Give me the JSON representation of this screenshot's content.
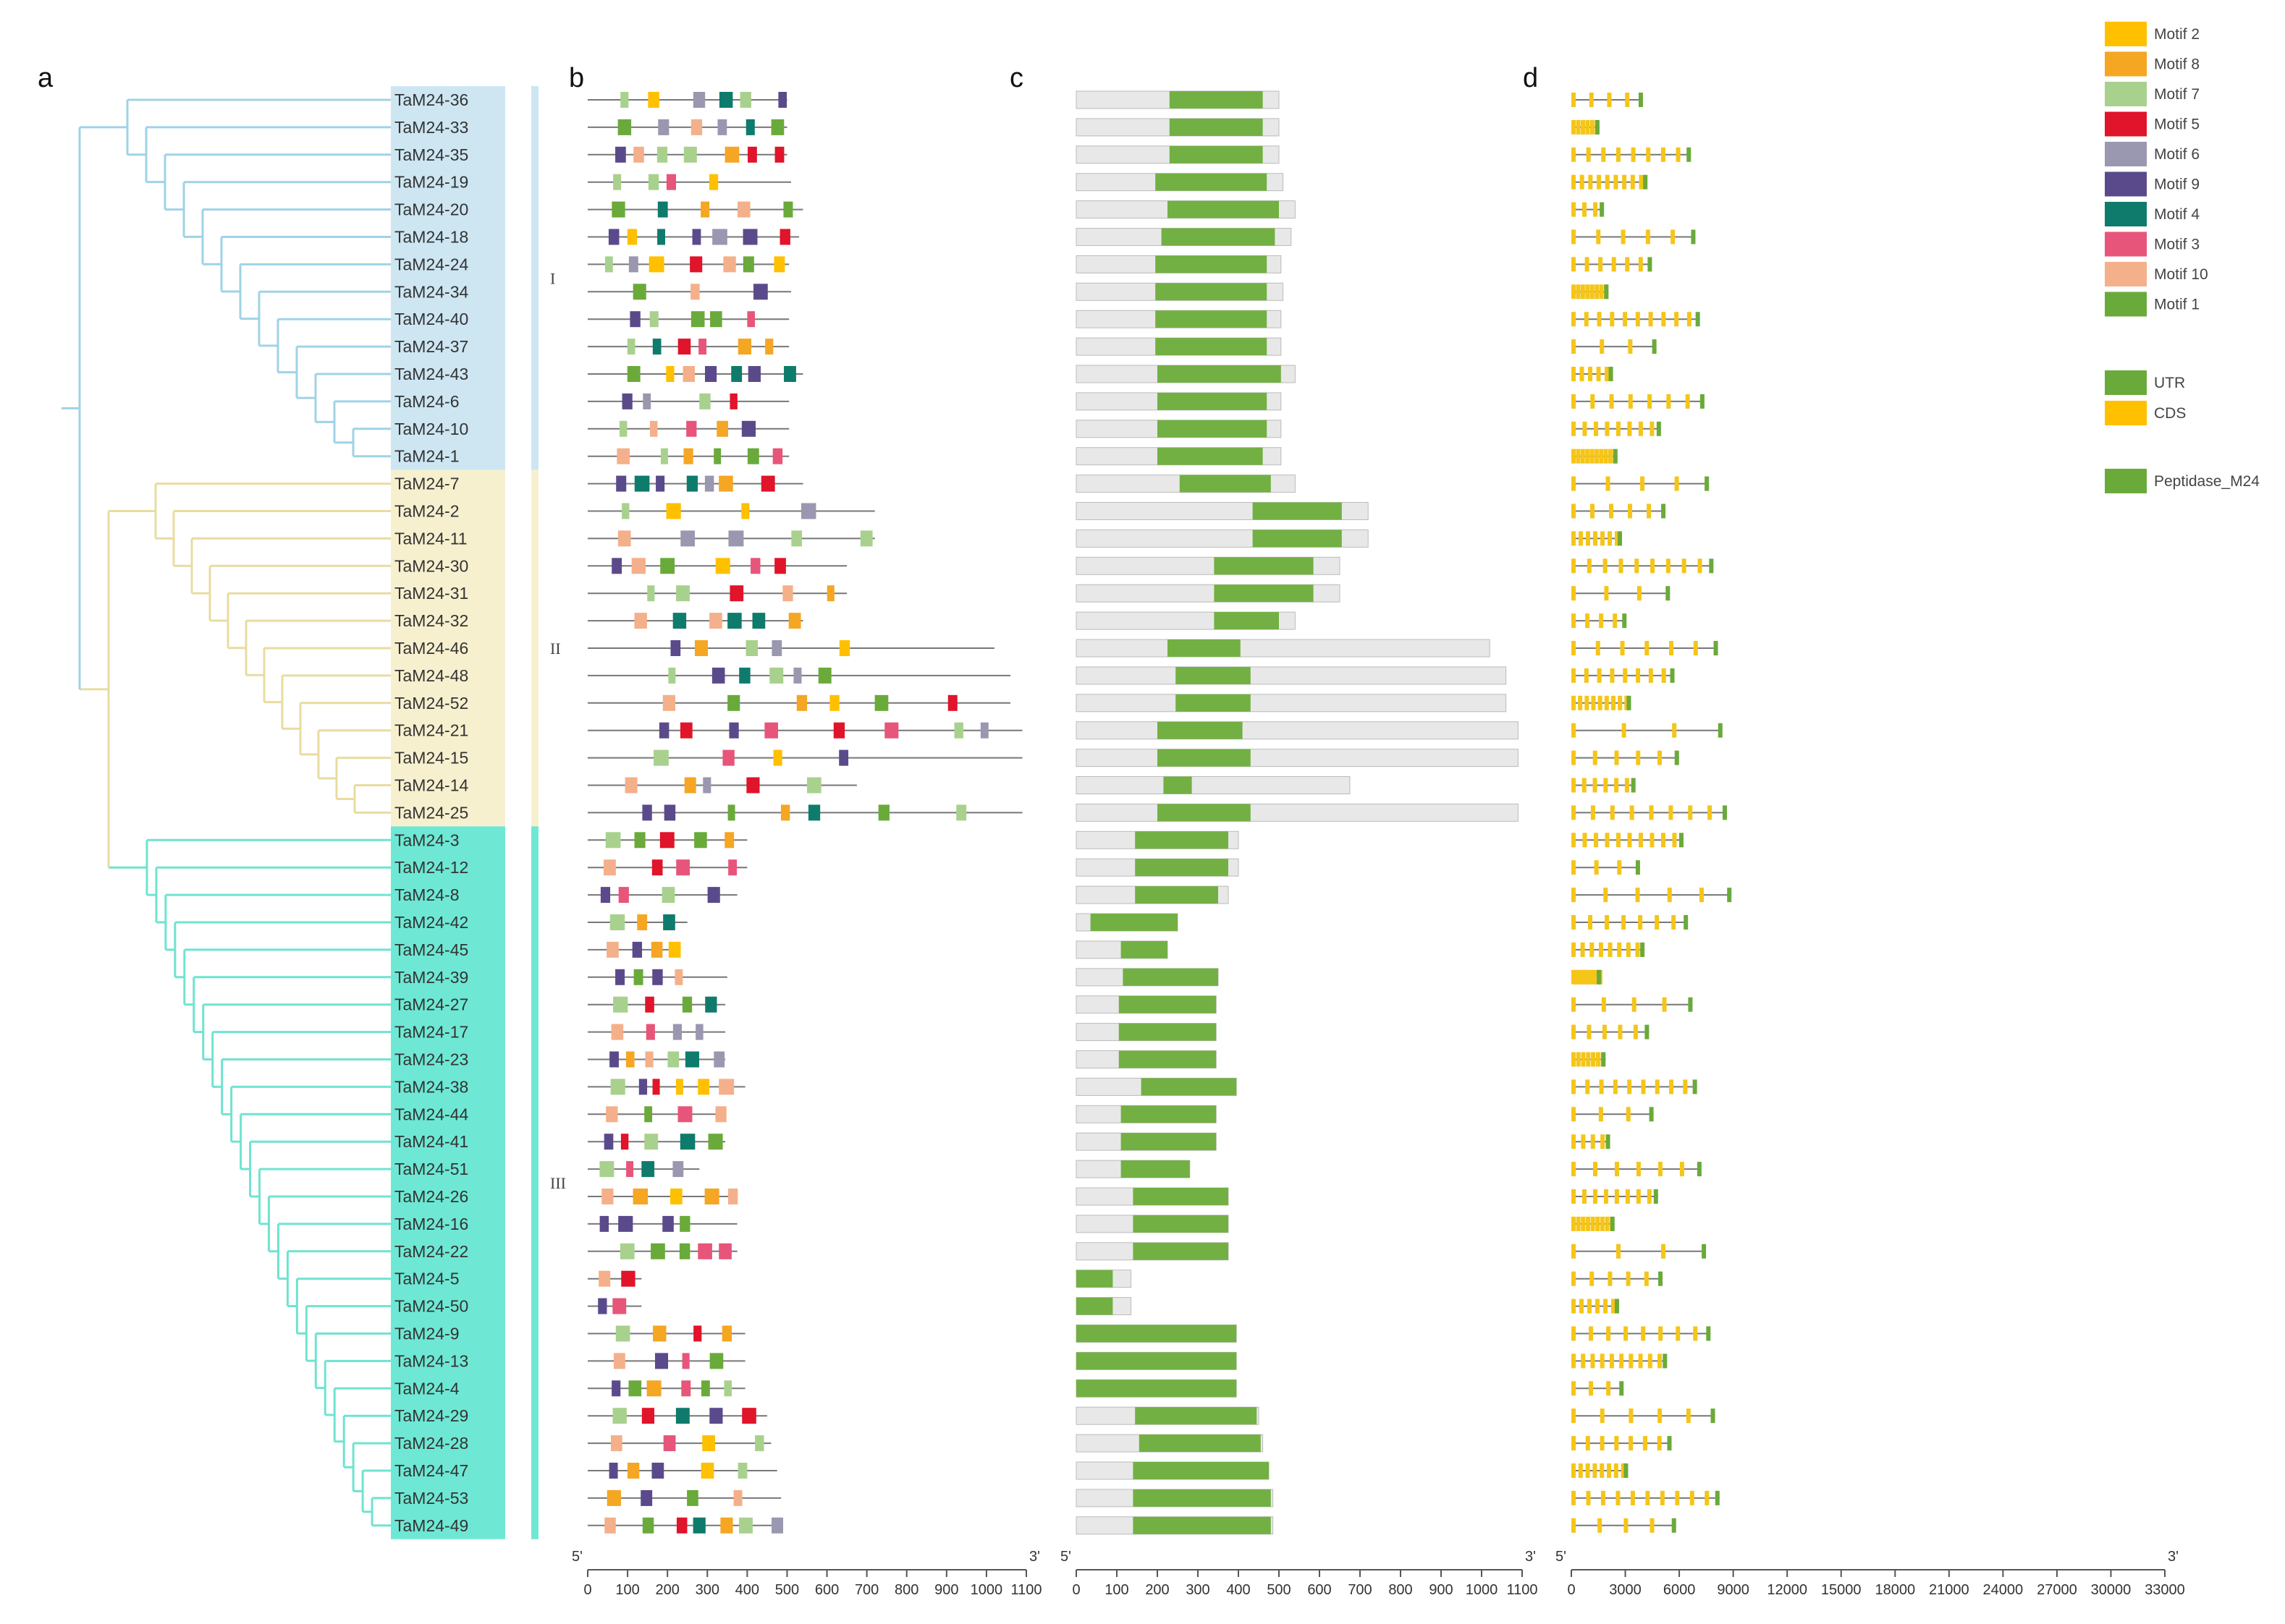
{
  "panels": {
    "a": "a",
    "b": "b",
    "c": "c",
    "d": "d"
  },
  "end_labels": {
    "five": "5'",
    "three": "3'"
  },
  "group_labels": [
    {
      "label": "I",
      "group": 1
    },
    {
      "label": "II",
      "group": 2
    },
    {
      "label": "III",
      "group": 3
    }
  ],
  "colors": {
    "group1": "#cde6f2",
    "group2": "#f7f0cf",
    "group3": "#6ee8d4",
    "tree1": "#9fd3e6",
    "tree2": "#e8dca0",
    "tree3": "#6fe3d0",
    "protein_line": "#777777",
    "exon": "#f5c518",
    "utr": "#6aaa3a",
    "domain": "#72b043",
    "bar_fill": "#e8e8e8"
  },
  "motif_legend": [
    {
      "name": "Motif 2",
      "color": "#ffc000"
    },
    {
      "name": "Motif 8",
      "color": "#f5a623"
    },
    {
      "name": "Motif 7",
      "color": "#a9d18e"
    },
    {
      "name": "Motif 5",
      "color": "#e0142a"
    },
    {
      "name": "Motif 6",
      "color": "#9a97b0"
    },
    {
      "name": "Motif 9",
      "color": "#5b4a8b"
    },
    {
      "name": "Motif 4",
      "color": "#0f7b6c"
    },
    {
      "name": "Motif 3",
      "color": "#e8557a"
    },
    {
      "name": "Motif 10",
      "color": "#f4b08a"
    },
    {
      "name": "Motif 1",
      "color": "#6aaa3a"
    }
  ],
  "structure_legend": [
    {
      "name": "UTR",
      "color": "#6aaa3a"
    },
    {
      "name": "CDS",
      "color": "#ffc000"
    },
    {
      "name": "Peptidase_M24",
      "color": "#6aaa3a"
    }
  ],
  "axis_b": {
    "ticks": [
      "0",
      "100",
      "200",
      "300",
      "400",
      "500",
      "600",
      "700",
      "800",
      "900",
      "1000",
      "1100"
    ],
    "max": 1100
  },
  "axis_c": {
    "ticks": [
      "0",
      "100",
      "200",
      "300",
      "400",
      "500",
      "600",
      "700",
      "800",
      "900",
      "1000",
      "1100"
    ],
    "max": 1100
  },
  "axis_d": {
    "ticks": [
      "0",
      "3000",
      "6000",
      "9000",
      "12000",
      "15000",
      "18000",
      "21000",
      "24000",
      "27000",
      "30000",
      "33000"
    ],
    "max": 33000
  },
  "genes": [
    {
      "name": "TaM24-36",
      "group": 1,
      "len": 500,
      "dom": [
        230,
        460
      ]
    },
    {
      "name": "TaM24-33",
      "group": 1,
      "len": 500,
      "dom": [
        230,
        460
      ]
    },
    {
      "name": "TaM24-35",
      "group": 1,
      "len": 500,
      "dom": [
        230,
        460
      ]
    },
    {
      "name": "TaM24-19",
      "group": 1,
      "len": 510,
      "dom": [
        195,
        470
      ]
    },
    {
      "name": "TaM24-20",
      "group": 1,
      "len": 540,
      "dom": [
        225,
        500
      ]
    },
    {
      "name": "TaM24-18",
      "group": 1,
      "len": 530,
      "dom": [
        210,
        490
      ]
    },
    {
      "name": "TaM24-24",
      "group": 1,
      "len": 505,
      "dom": [
        195,
        470
      ]
    },
    {
      "name": "TaM24-34",
      "group": 1,
      "len": 510,
      "dom": [
        195,
        470
      ]
    },
    {
      "name": "TaM24-40",
      "group": 1,
      "len": 505,
      "dom": [
        195,
        470
      ]
    },
    {
      "name": "TaM24-37",
      "group": 1,
      "len": 505,
      "dom": [
        195,
        470
      ]
    },
    {
      "name": "TaM24-43",
      "group": 1,
      "len": 540,
      "dom": [
        200,
        505
      ]
    },
    {
      "name": "TaM24-6",
      "group": 1,
      "len": 505,
      "dom": [
        200,
        470
      ]
    },
    {
      "name": "TaM24-10",
      "group": 1,
      "len": 505,
      "dom": [
        200,
        470
      ]
    },
    {
      "name": "TaM24-1",
      "group": 1,
      "len": 505,
      "dom": [
        200,
        460
      ]
    },
    {
      "name": "TaM24-7",
      "group": 2,
      "len": 540,
      "dom": [
        255,
        480
      ]
    },
    {
      "name": "TaM24-2",
      "group": 2,
      "len": 720,
      "dom": [
        435,
        655
      ]
    },
    {
      "name": "TaM24-11",
      "group": 2,
      "len": 720,
      "dom": [
        435,
        655
      ]
    },
    {
      "name": "TaM24-30",
      "group": 2,
      "len": 650,
      "dom": [
        340,
        585
      ]
    },
    {
      "name": "TaM24-31",
      "group": 2,
      "len": 650,
      "dom": [
        340,
        585
      ]
    },
    {
      "name": "TaM24-32",
      "group": 2,
      "len": 540,
      "dom": [
        340,
        500
      ]
    },
    {
      "name": "TaM24-46",
      "group": 2,
      "len": 1020,
      "dom": [
        225,
        405
      ]
    },
    {
      "name": "TaM24-48",
      "group": 2,
      "len": 1060,
      "dom": [
        245,
        430
      ]
    },
    {
      "name": "TaM24-52",
      "group": 2,
      "len": 1060,
      "dom": [
        245,
        430
      ]
    },
    {
      "name": "TaM24-21",
      "group": 2,
      "len": 1090,
      "dom": [
        200,
        410
      ]
    },
    {
      "name": "TaM24-15",
      "group": 2,
      "len": 1090,
      "dom": [
        200,
        430
      ]
    },
    {
      "name": "TaM24-14",
      "group": 2,
      "len": 675,
      "dom": [
        215,
        285
      ]
    },
    {
      "name": "TaM24-25",
      "group": 2,
      "len": 1090,
      "dom": [
        200,
        430
      ]
    },
    {
      "name": "TaM24-3",
      "group": 3,
      "len": 400,
      "dom": [
        145,
        375
      ]
    },
    {
      "name": "TaM24-12",
      "group": 3,
      "len": 400,
      "dom": [
        145,
        375
      ]
    },
    {
      "name": "TaM24-8",
      "group": 3,
      "len": 375,
      "dom": [
        145,
        350
      ]
    },
    {
      "name": "TaM24-42",
      "group": 3,
      "len": 250,
      "dom": [
        35,
        250
      ]
    },
    {
      "name": "TaM24-45",
      "group": 3,
      "len": 225,
      "dom": [
        110,
        225
      ]
    },
    {
      "name": "TaM24-39",
      "group": 3,
      "len": 350,
      "dom": [
        115,
        350
      ]
    },
    {
      "name": "TaM24-27",
      "group": 3,
      "len": 345,
      "dom": [
        105,
        345
      ]
    },
    {
      "name": "TaM24-17",
      "group": 3,
      "len": 345,
      "dom": [
        105,
        345
      ]
    },
    {
      "name": "TaM24-23",
      "group": 3,
      "len": 345,
      "dom": [
        105,
        345
      ]
    },
    {
      "name": "TaM24-38",
      "group": 3,
      "len": 395,
      "dom": [
        160,
        395
      ]
    },
    {
      "name": "TaM24-44",
      "group": 3,
      "len": 345,
      "dom": [
        110,
        345
      ]
    },
    {
      "name": "TaM24-41",
      "group": 3,
      "len": 345,
      "dom": [
        110,
        345
      ]
    },
    {
      "name": "TaM24-51",
      "group": 3,
      "len": 280,
      "dom": [
        110,
        280
      ]
    },
    {
      "name": "TaM24-26",
      "group": 3,
      "len": 375,
      "dom": [
        140,
        375
      ]
    },
    {
      "name": "TaM24-16",
      "group": 3,
      "len": 375,
      "dom": [
        140,
        375
      ]
    },
    {
      "name": "TaM24-22",
      "group": 3,
      "len": 375,
      "dom": [
        140,
        375
      ]
    },
    {
      "name": "TaM24-5",
      "group": 3,
      "len": 135,
      "dom": [
        0,
        90
      ]
    },
    {
      "name": "TaM24-50",
      "group": 3,
      "len": 135,
      "dom": [
        0,
        90
      ]
    },
    {
      "name": "TaM24-9",
      "group": 3,
      "len": 395,
      "dom": [
        0,
        395
      ]
    },
    {
      "name": "TaM24-13",
      "group": 3,
      "len": 395,
      "dom": [
        0,
        395
      ]
    },
    {
      "name": "TaM24-4",
      "group": 3,
      "len": 395,
      "dom": [
        0,
        395
      ]
    },
    {
      "name": "TaM24-29",
      "group": 3,
      "len": 450,
      "dom": [
        145,
        445
      ]
    },
    {
      "name": "TaM24-28",
      "group": 3,
      "len": 460,
      "dom": [
        155,
        455
      ]
    },
    {
      "name": "TaM24-47",
      "group": 3,
      "len": 475,
      "dom": [
        140,
        475
      ]
    },
    {
      "name": "TaM24-53",
      "group": 3,
      "len": 485,
      "dom": [
        140,
        480
      ]
    },
    {
      "name": "TaM24-49",
      "group": 3,
      "len": 485,
      "dom": [
        140,
        480
      ]
    }
  ]
}
